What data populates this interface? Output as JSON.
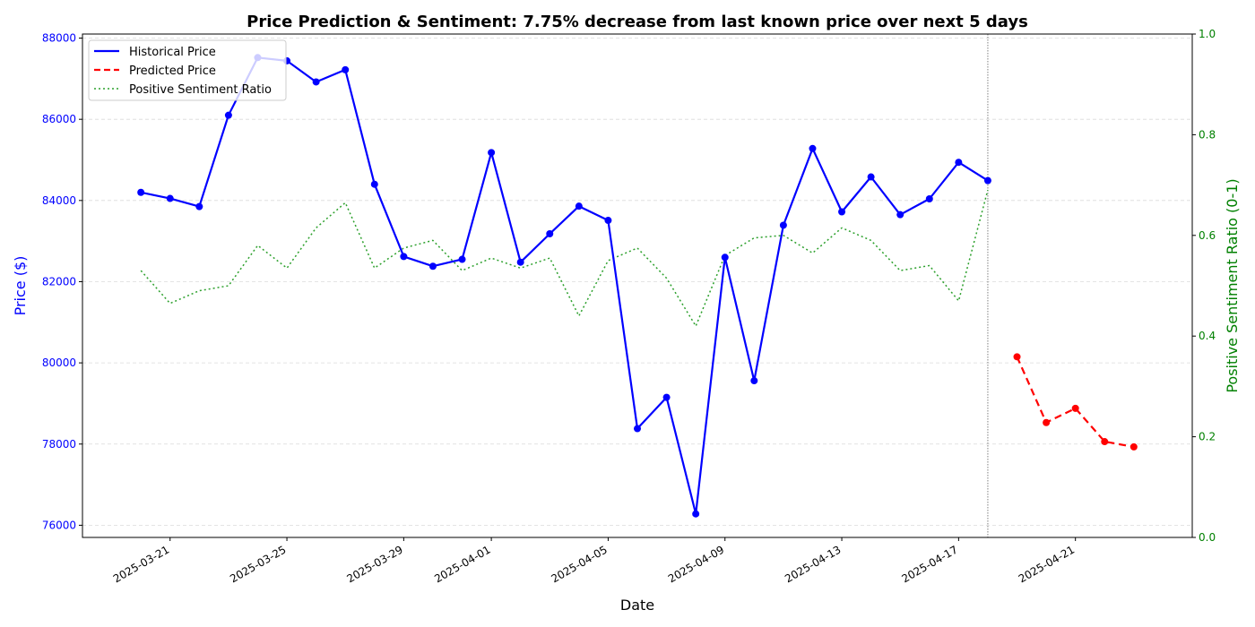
{
  "chart_data": {
    "type": "line",
    "title": "Price Prediction & Sentiment: 7.75% decrease from last known price over next 5 days",
    "xlabel": "Date",
    "ylabel_left": "Price ($)",
    "ylabel_right": "Positive Sentiment Ratio (0-1)",
    "ylim_left": [
      75700,
      88100
    ],
    "ylim_right": [
      0,
      1
    ],
    "xlim": [
      "2025-03-18",
      "2025-04-25"
    ],
    "y_ticks_left": [
      76000,
      78000,
      80000,
      82000,
      84000,
      86000,
      88000
    ],
    "y_ticks_right": [
      "0.0",
      "0.2",
      "0.4",
      "0.6",
      "0.8",
      "1.0"
    ],
    "x_ticks": [
      "2025-03-21",
      "2025-03-25",
      "2025-03-29",
      "2025-04-01",
      "2025-04-05",
      "2025-04-09",
      "2025-04-13",
      "2025-04-17",
      "2025-04-21"
    ],
    "grid": true,
    "legend_position": "top-left",
    "cutoff_date": "2025-04-18",
    "series": [
      {
        "name": "Historical Price",
        "axis": "left",
        "style": "solid",
        "markers": true,
        "color": "#0000ff",
        "points": [
          [
            "2025-03-20",
            84200
          ],
          [
            "2025-03-21",
            84050
          ],
          [
            "2025-03-22",
            83850
          ],
          [
            "2025-03-23",
            86100
          ],
          [
            "2025-03-24",
            87520
          ],
          [
            "2025-03-25",
            87440
          ],
          [
            "2025-03-26",
            86920
          ],
          [
            "2025-03-27",
            87220
          ],
          [
            "2025-03-28",
            84400
          ],
          [
            "2025-03-29",
            82620
          ],
          [
            "2025-03-30",
            82380
          ],
          [
            "2025-03-31",
            82550
          ],
          [
            "2025-04-01",
            85180
          ],
          [
            "2025-04-02",
            82480
          ],
          [
            "2025-04-03",
            83180
          ],
          [
            "2025-04-04",
            83860
          ],
          [
            "2025-04-05",
            83510
          ],
          [
            "2025-04-06",
            78380
          ],
          [
            "2025-04-07",
            79150
          ],
          [
            "2025-04-08",
            76280
          ],
          [
            "2025-04-09",
            82600
          ],
          [
            "2025-04-10",
            79560
          ],
          [
            "2025-04-11",
            83390
          ],
          [
            "2025-04-12",
            85280
          ],
          [
            "2025-04-13",
            83720
          ],
          [
            "2025-04-14",
            84580
          ],
          [
            "2025-04-15",
            83650
          ],
          [
            "2025-04-16",
            84040
          ],
          [
            "2025-04-17",
            84940
          ],
          [
            "2025-04-18",
            84490
          ]
        ]
      },
      {
        "name": "Predicted Price",
        "axis": "left",
        "style": "dashed",
        "markers": true,
        "color": "#ff0000",
        "points": [
          [
            "2025-04-19",
            80150
          ],
          [
            "2025-04-20",
            78530
          ],
          [
            "2025-04-21",
            78880
          ],
          [
            "2025-04-22",
            78060
          ],
          [
            "2025-04-23",
            77930
          ]
        ]
      },
      {
        "name": "Positive Sentiment Ratio",
        "axis": "right",
        "style": "dotted",
        "markers": false,
        "color": "#2ca02c",
        "points": [
          [
            "2025-03-20",
            0.53
          ],
          [
            "2025-03-21",
            0.465
          ],
          [
            "2025-03-22",
            0.49
          ],
          [
            "2025-03-23",
            0.5
          ],
          [
            "2025-03-24",
            0.58
          ],
          [
            "2025-03-25",
            0.535
          ],
          [
            "2025-03-26",
            0.615
          ],
          [
            "2025-03-27",
            0.665
          ],
          [
            "2025-03-28",
            0.535
          ],
          [
            "2025-03-29",
            0.575
          ],
          [
            "2025-03-30",
            0.59
          ],
          [
            "2025-03-31",
            0.53
          ],
          [
            "2025-04-01",
            0.555
          ],
          [
            "2025-04-02",
            0.535
          ],
          [
            "2025-04-03",
            0.555
          ],
          [
            "2025-04-04",
            0.44
          ],
          [
            "2025-04-05",
            0.55
          ],
          [
            "2025-04-06",
            0.575
          ],
          [
            "2025-04-07",
            0.515
          ],
          [
            "2025-04-08",
            0.42
          ],
          [
            "2025-04-09",
            0.56
          ],
          [
            "2025-04-10",
            0.595
          ],
          [
            "2025-04-11",
            0.6
          ],
          [
            "2025-04-12",
            0.565
          ],
          [
            "2025-04-13",
            0.615
          ],
          [
            "2025-04-14",
            0.59
          ],
          [
            "2025-04-15",
            0.53
          ],
          [
            "2025-04-16",
            0.54
          ],
          [
            "2025-04-17",
            0.47
          ],
          [
            "2025-04-18",
            0.69
          ]
        ]
      }
    ]
  },
  "colors": {
    "left_axis": "#0000ff",
    "right_axis": "#008000",
    "grid": "#cccccc",
    "cutoff_line": "#808080"
  }
}
